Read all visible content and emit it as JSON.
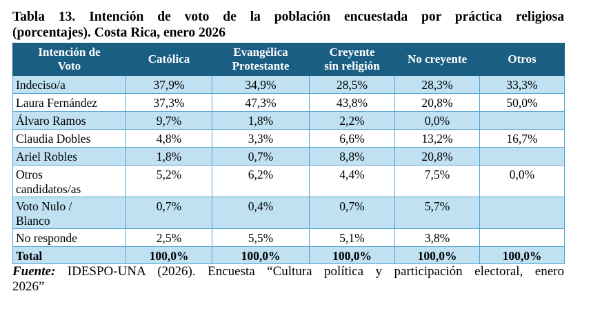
{
  "title": {
    "line1": "Tabla 13. Intención de voto de la población encuestada por práctica religiosa",
    "line2": "(porcentajes). Costa Rica, enero 2026"
  },
  "table": {
    "headers": [
      [
        "Intención de",
        "Voto"
      ],
      [
        "Católica"
      ],
      [
        "Evangélica",
        "Protestante"
      ],
      [
        "Creyente",
        "sin religión"
      ],
      [
        "No creyente"
      ],
      [
        "Otros"
      ]
    ],
    "rows": [
      {
        "label": [
          "Indeciso/a"
        ],
        "values": [
          "37,9%",
          "34,9%",
          "28,5%",
          "28,3%",
          "33,3%"
        ]
      },
      {
        "label": [
          "Laura Fernández"
        ],
        "values": [
          "37,3%",
          "47,3%",
          "43,8%",
          "20,8%",
          "50,0%"
        ]
      },
      {
        "label": [
          "Álvaro Ramos"
        ],
        "values": [
          "9,7%",
          "1,8%",
          "2,2%",
          "0,0%",
          ""
        ]
      },
      {
        "label": [
          "Claudia Dobles"
        ],
        "values": [
          "4,8%",
          "3,3%",
          "6,6%",
          "13,2%",
          "16,7%"
        ]
      },
      {
        "label": [
          "Ariel Robles"
        ],
        "values": [
          "1,8%",
          "0,7%",
          "8,8%",
          "20,8%",
          ""
        ]
      },
      {
        "label": [
          "Otros",
          "candidatos/as"
        ],
        "values": [
          "5,2%",
          "6,2%",
          "4,4%",
          "7,5%",
          "0,0%"
        ]
      },
      {
        "label": [
          "Voto Nulo /",
          "Blanco"
        ],
        "values": [
          "0,7%",
          "0,4%",
          "0,7%",
          "5,7%",
          ""
        ]
      },
      {
        "label": [
          "No responde"
        ],
        "values": [
          "2,5%",
          "5,5%",
          "5,1%",
          "3,8%",
          ""
        ]
      }
    ],
    "total": {
      "label": "Total",
      "values": [
        "100,0%",
        "100,0%",
        "100,0%",
        "100,0%",
        "100,0%"
      ]
    }
  },
  "source": {
    "label": "Fuente:",
    "line1": "IDESPO-UNA (2026). Encuesta “Cultura política y participación electoral, enero",
    "line2": "2026”"
  },
  "colors": {
    "header_bg": "#1b5e83",
    "stripe_bg": "#bfe1f2",
    "border": "#4fa3d3"
  }
}
